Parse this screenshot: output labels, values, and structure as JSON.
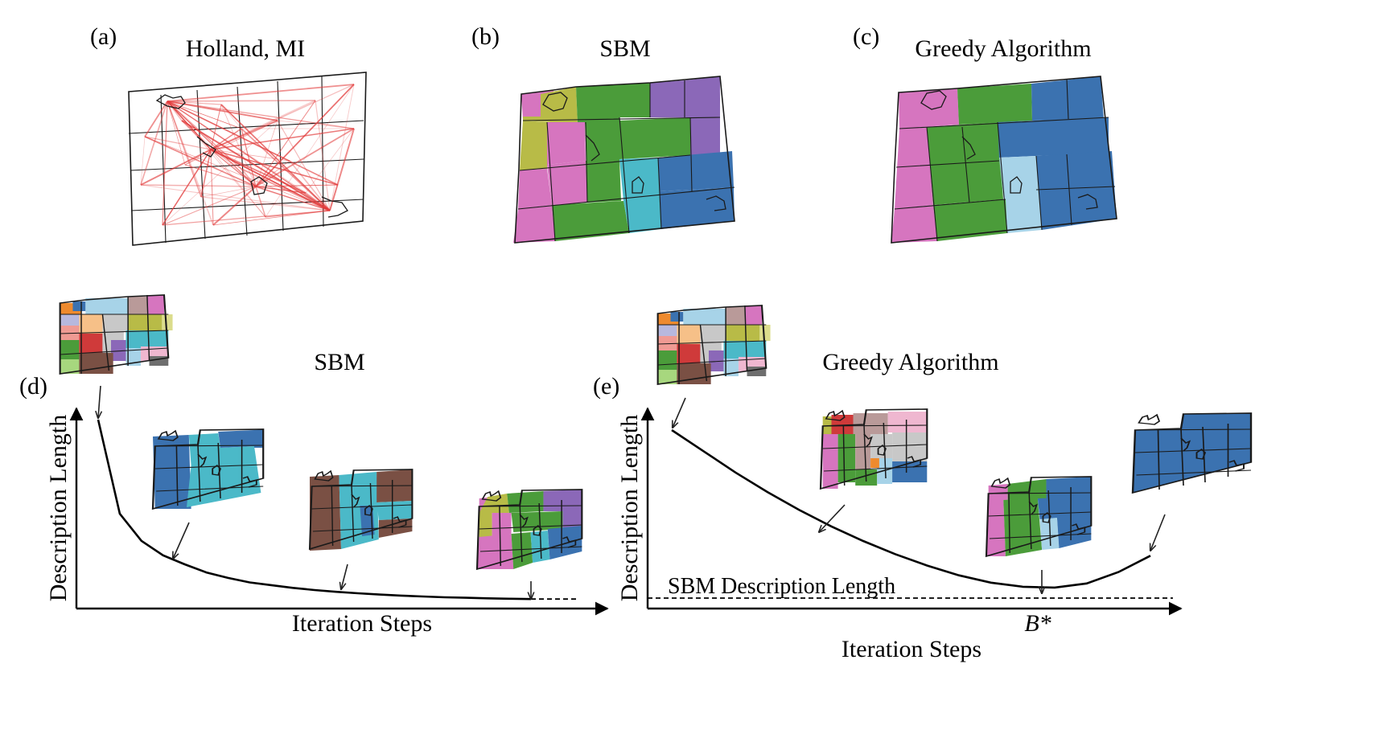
{
  "panels": {
    "a": {
      "letter": "(a)",
      "title": "Holland, MI"
    },
    "b": {
      "letter": "(b)",
      "title": "SBM"
    },
    "c": {
      "letter": "(c)",
      "title": "Greedy Algorithm"
    },
    "d": {
      "letter": "(d)",
      "title": "SBM",
      "xlabel": "Iteration Steps",
      "ylabel": "Description Length"
    },
    "e": {
      "letter": "(e)",
      "title": "Greedy Algorithm",
      "xlabel": "Iteration Steps",
      "ylabel": "Description Length",
      "reference_line_label": "SBM Description Length",
      "optimum_label": "B*"
    }
  },
  "colors": {
    "pink": "#d675bf",
    "olive": "#b8bb47",
    "green": "#4b9c3a",
    "purple": "#8b68b8",
    "blue": "#3b72b0",
    "cyan": "#4bb9c8",
    "lightblue": "#a7d3e8",
    "brown": "#7a5044",
    "red": "#cf3a3a",
    "orange": "#ee8a2e",
    "salmon": "#ef9a93",
    "peach": "#f6c088",
    "lilac": "#b7b8dd",
    "mauve": "#b99a99",
    "gray": "#c8c8c8",
    "darkgray": "#6e6e6e",
    "lightgreen": "#a7d77e",
    "lightpink": "#efb7d0",
    "khaki": "#dbdc8c",
    "edge_red": "#e23b3b"
  },
  "chart_data": [
    {
      "panel": "d",
      "type": "line",
      "title": "SBM",
      "xlabel": "Iteration Steps",
      "ylabel": "Description Length",
      "series": [
        {
          "values": [
            1.0,
            0.48,
            0.33,
            0.25,
            0.2,
            0.155,
            0.125,
            0.1,
            0.085,
            0.07,
            0.058,
            0.048,
            0.04,
            0.033,
            0.027,
            0.022,
            0.018,
            0.015,
            0.012,
            0.01,
            0.008
          ]
        }
      ],
      "dashed_tail": true,
      "ticks": "none"
    },
    {
      "panel": "e",
      "type": "line",
      "title": "Greedy Algorithm",
      "xlabel": "Iteration Steps",
      "ylabel": "Description Length",
      "series": [
        {
          "values": [
            1.0,
            0.87,
            0.74,
            0.62,
            0.51,
            0.41,
            0.32,
            0.24,
            0.17,
            0.11,
            0.065,
            0.04,
            0.035,
            0.06,
            0.13,
            0.23
          ]
        }
      ],
      "reference_line": {
        "label": "SBM Description Length",
        "value": 0.0,
        "style": "dashed"
      },
      "optimum": {
        "label": "B*",
        "index": 12
      },
      "ticks": "none"
    }
  ]
}
